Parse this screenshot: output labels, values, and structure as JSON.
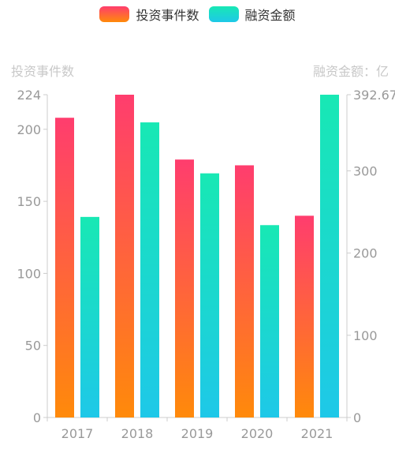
{
  "legend": {
    "items": [
      {
        "label": "投资事件数",
        "gradient": [
          "#ff3d6e",
          "#ff8a0a"
        ]
      },
      {
        "label": "融资金额",
        "gradient": [
          "#18e8b4",
          "#1ec8e8"
        ]
      }
    ]
  },
  "axes": {
    "left_title": "投资事件数",
    "right_title": "融资金额：亿",
    "left_ticks": [
      "224",
      "200",
      "150",
      "100",
      "50",
      "0"
    ],
    "right_ticks": [
      "392.67",
      "300",
      "200",
      "100",
      "0"
    ]
  },
  "chart_data": {
    "type": "bar",
    "categories": [
      "2017",
      "2018",
      "2019",
      "2020",
      "2021"
    ],
    "series": [
      {
        "name": "投资事件数",
        "axis": "left",
        "values": [
          208,
          224,
          179,
          175,
          140
        ]
      },
      {
        "name": "融资金额",
        "axis": "right",
        "values": [
          244,
          359,
          297,
          234,
          392.67
        ]
      }
    ],
    "ylim_left": [
      0,
      224
    ],
    "ylim_right": [
      0,
      392.67
    ],
    "xlabel": "",
    "ylabel_left": "投资事件数",
    "ylabel_right": "融资金额：亿",
    "legend_position": "top-center",
    "grid": false
  }
}
